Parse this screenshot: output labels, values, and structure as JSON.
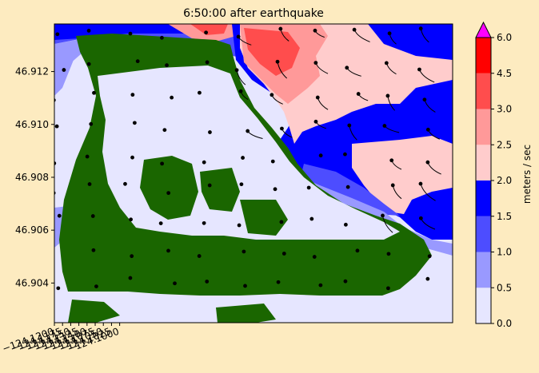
{
  "chart_data": {
    "type": "heatmap",
    "title": "6:50:00 after earthquake",
    "xlabel": "",
    "ylabel": "",
    "xlim": [
      -124.12,
      -123.998
    ],
    "ylim": [
      46.9025,
      46.9138
    ],
    "x_ticks": [
      -124.12,
      -124.1175,
      -124.115,
      -124.1125,
      -124.11,
      -124.1075,
      -124.105,
      -124.1025,
      -124.1
    ],
    "x_tick_labels": [
      "−124.1200",
      "−124.1175",
      "−124.1150",
      "−124.1125",
      "−124.1100",
      "−124.1075",
      "−124.1050",
      "−124.1025",
      "−124.1000"
    ],
    "y_ticks": [
      46.904,
      46.906,
      46.908,
      46.91,
      46.912
    ],
    "y_tick_labels": [
      "46.904",
      "46.906",
      "46.908",
      "46.910",
      "46.912"
    ],
    "colorbar": {
      "label": "meters / sec",
      "ticks": [
        0.0,
        0.5,
        1.0,
        1.5,
        2.0,
        2.5,
        3.0,
        4.5,
        6.0
      ],
      "tick_labels": [
        "0.0",
        "0.5",
        "1.0",
        "1.5",
        "2.0",
        "2.5",
        "3.0",
        "4.5",
        "6.0"
      ],
      "colors": [
        "#e6e6ff",
        "#9999ff",
        "#4d4dff",
        "#0000ff",
        "#ffcccc",
        "#ff9999",
        "#ff4d4d",
        "#ff0000"
      ],
      "extend_color": "#ff00ff"
    },
    "land_color": "#1a6600",
    "particle_color": "#000000"
  }
}
